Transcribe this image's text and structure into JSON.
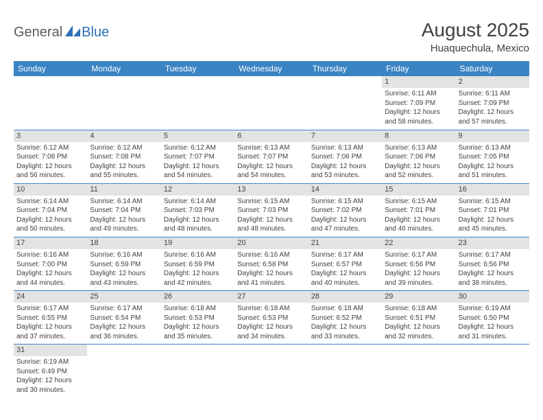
{
  "logo": {
    "text1": "General",
    "text2": "Blue"
  },
  "header": {
    "title": "August 2025",
    "location": "Huaquechula, Mexico"
  },
  "colors": {
    "header_bg": "#3b84c4",
    "header_text": "#ffffff",
    "daynum_bg": "#e3e3e3",
    "text": "#404040",
    "rule": "#3b84c4"
  },
  "weekdays": [
    "Sunday",
    "Monday",
    "Tuesday",
    "Wednesday",
    "Thursday",
    "Friday",
    "Saturday"
  ],
  "weeks": [
    [
      null,
      null,
      null,
      null,
      null,
      {
        "n": "1",
        "sr": "6:11 AM",
        "ss": "7:09 PM",
        "dh": "12",
        "dm": "58"
      },
      {
        "n": "2",
        "sr": "6:11 AM",
        "ss": "7:09 PM",
        "dh": "12",
        "dm": "57"
      }
    ],
    [
      {
        "n": "3",
        "sr": "6:12 AM",
        "ss": "7:08 PM",
        "dh": "12",
        "dm": "56"
      },
      {
        "n": "4",
        "sr": "6:12 AM",
        "ss": "7:08 PM",
        "dh": "12",
        "dm": "55"
      },
      {
        "n": "5",
        "sr": "6:12 AM",
        "ss": "7:07 PM",
        "dh": "12",
        "dm": "54"
      },
      {
        "n": "6",
        "sr": "6:13 AM",
        "ss": "7:07 PM",
        "dh": "12",
        "dm": "54"
      },
      {
        "n": "7",
        "sr": "6:13 AM",
        "ss": "7:06 PM",
        "dh": "12",
        "dm": "53"
      },
      {
        "n": "8",
        "sr": "6:13 AM",
        "ss": "7:06 PM",
        "dh": "12",
        "dm": "52"
      },
      {
        "n": "9",
        "sr": "6:13 AM",
        "ss": "7:05 PM",
        "dh": "12",
        "dm": "51"
      }
    ],
    [
      {
        "n": "10",
        "sr": "6:14 AM",
        "ss": "7:04 PM",
        "dh": "12",
        "dm": "50"
      },
      {
        "n": "11",
        "sr": "6:14 AM",
        "ss": "7:04 PM",
        "dh": "12",
        "dm": "49"
      },
      {
        "n": "12",
        "sr": "6:14 AM",
        "ss": "7:03 PM",
        "dh": "12",
        "dm": "48"
      },
      {
        "n": "13",
        "sr": "6:15 AM",
        "ss": "7:03 PM",
        "dh": "12",
        "dm": "48"
      },
      {
        "n": "14",
        "sr": "6:15 AM",
        "ss": "7:02 PM",
        "dh": "12",
        "dm": "47"
      },
      {
        "n": "15",
        "sr": "6:15 AM",
        "ss": "7:01 PM",
        "dh": "12",
        "dm": "46"
      },
      {
        "n": "16",
        "sr": "6:15 AM",
        "ss": "7:01 PM",
        "dh": "12",
        "dm": "45"
      }
    ],
    [
      {
        "n": "17",
        "sr": "6:16 AM",
        "ss": "7:00 PM",
        "dh": "12",
        "dm": "44"
      },
      {
        "n": "18",
        "sr": "6:16 AM",
        "ss": "6:59 PM",
        "dh": "12",
        "dm": "43"
      },
      {
        "n": "19",
        "sr": "6:16 AM",
        "ss": "6:59 PM",
        "dh": "12",
        "dm": "42"
      },
      {
        "n": "20",
        "sr": "6:16 AM",
        "ss": "6:58 PM",
        "dh": "12",
        "dm": "41"
      },
      {
        "n": "21",
        "sr": "6:17 AM",
        "ss": "6:57 PM",
        "dh": "12",
        "dm": "40"
      },
      {
        "n": "22",
        "sr": "6:17 AM",
        "ss": "6:56 PM",
        "dh": "12",
        "dm": "39"
      },
      {
        "n": "23",
        "sr": "6:17 AM",
        "ss": "6:56 PM",
        "dh": "12",
        "dm": "38"
      }
    ],
    [
      {
        "n": "24",
        "sr": "6:17 AM",
        "ss": "6:55 PM",
        "dh": "12",
        "dm": "37"
      },
      {
        "n": "25",
        "sr": "6:17 AM",
        "ss": "6:54 PM",
        "dh": "12",
        "dm": "36"
      },
      {
        "n": "26",
        "sr": "6:18 AM",
        "ss": "6:53 PM",
        "dh": "12",
        "dm": "35"
      },
      {
        "n": "27",
        "sr": "6:18 AM",
        "ss": "6:53 PM",
        "dh": "12",
        "dm": "34"
      },
      {
        "n": "28",
        "sr": "6:18 AM",
        "ss": "6:52 PM",
        "dh": "12",
        "dm": "33"
      },
      {
        "n": "29",
        "sr": "6:18 AM",
        "ss": "6:51 PM",
        "dh": "12",
        "dm": "32"
      },
      {
        "n": "30",
        "sr": "6:19 AM",
        "ss": "6:50 PM",
        "dh": "12",
        "dm": "31"
      }
    ],
    [
      {
        "n": "31",
        "sr": "6:19 AM",
        "ss": "6:49 PM",
        "dh": "12",
        "dm": "30"
      },
      null,
      null,
      null,
      null,
      null,
      null
    ]
  ],
  "labels": {
    "sunrise": "Sunrise: ",
    "sunset": "Sunset: ",
    "daylight1": "Daylight: ",
    "daylight2": " hours and ",
    "daylight3": " minutes."
  }
}
